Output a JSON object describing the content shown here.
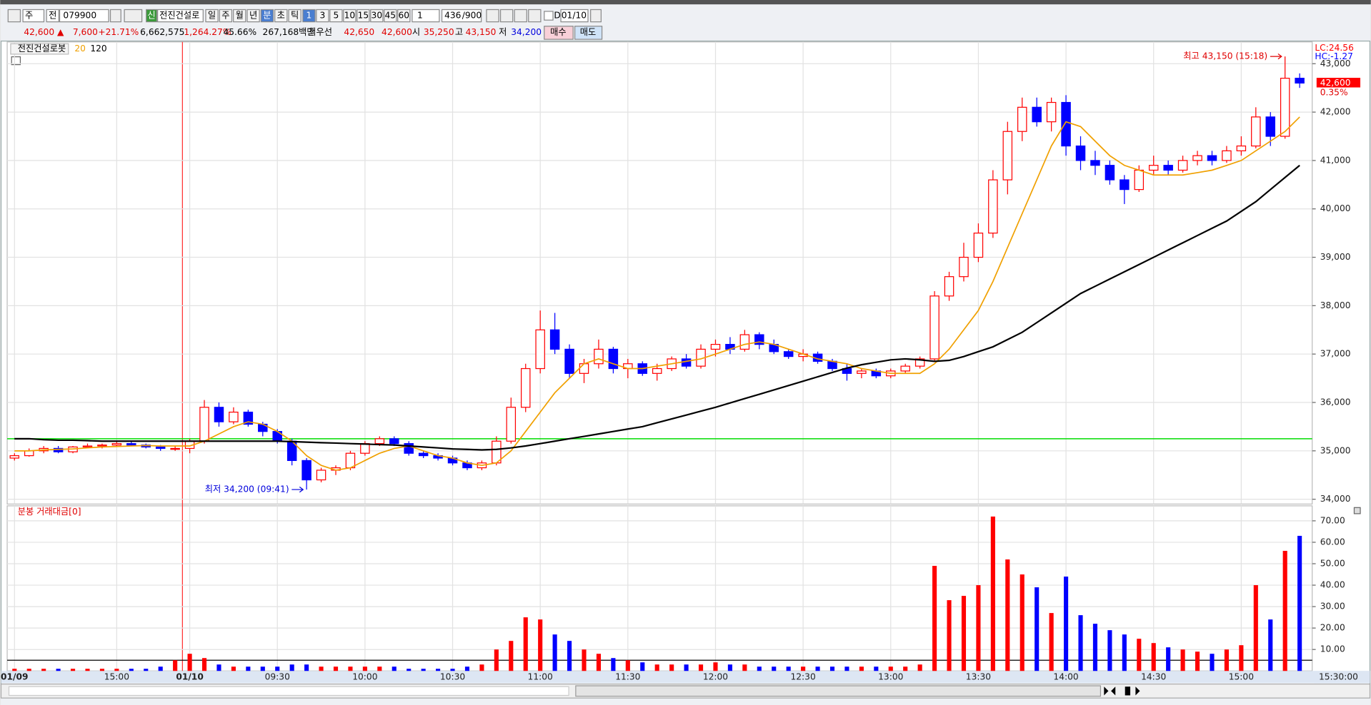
{
  "toolbar": {
    "market": "주",
    "kind": "전",
    "code": "079900",
    "credit": "신",
    "name": "전진건설로",
    "periods": [
      "일",
      "주",
      "월",
      "년",
      "분",
      "초",
      "틱"
    ],
    "intervals": [
      "1",
      "3",
      "5",
      "10",
      "15",
      "30",
      "45",
      "60"
    ],
    "count": "1",
    "bars": "436",
    "max_bars": "/900",
    "date_mode": "D",
    "date": "01/10"
  },
  "quote": {
    "price": "42,600 ▲",
    "change": "7,600",
    "change_pct": "+21.71%",
    "volume": "6,662,575",
    "volume_ratio": "1,264.27%",
    "turnover": "45.66%",
    "amount": "267,168백만",
    "best_label": "최우선",
    "best_ask": "42,650",
    "best_bid": "42,600",
    "open_label": "시",
    "open": "35,250",
    "high_label": "고",
    "high": "43,150",
    "low_label": "저",
    "low": "34,200",
    "buy": "매수",
    "sell": "매도"
  },
  "chart_data": [
    {
      "type": "candlestick",
      "title": "전진건설로봇",
      "up_color": "#ff0000",
      "down_color": "#0000ff",
      "open": [
        34850,
        34900,
        35000,
        35050,
        34980,
        35080,
        35100,
        35120,
        35150,
        35120,
        35080,
        35050,
        35050,
        35200,
        35900,
        35600,
        35800,
        35550,
        35400,
        35200,
        34800,
        34400,
        34600,
        34650,
        34950,
        35150,
        35250,
        35150,
        34950,
        34900,
        34850,
        34750,
        34650,
        34750,
        35200,
        35900,
        36700,
        37500,
        37100,
        36600,
        36800,
        37100,
        36700,
        36800,
        36600,
        36700,
        36900,
        36750,
        37100,
        37200,
        37100,
        37400,
        37200,
        37050,
        36950,
        37000,
        36850,
        36700,
        36600,
        36650,
        36550,
        36650,
        36750,
        36900,
        38200,
        38600,
        39000,
        39500,
        40600,
        41600,
        42100,
        41800,
        42200,
        41300,
        41000,
        40900,
        40600,
        40400,
        40800,
        40900,
        40800,
        41000,
        41100,
        41000,
        41200,
        41300,
        41900,
        41500,
        42700
      ],
      "high": [
        34950,
        35050,
        35100,
        35100,
        35100,
        35150,
        35150,
        35200,
        35200,
        35150,
        35120,
        35100,
        35250,
        36050,
        36000,
        35900,
        35850,
        35600,
        35450,
        35250,
        34850,
        34650,
        34700,
        35000,
        35200,
        35300,
        35300,
        35200,
        35000,
        34950,
        34900,
        34800,
        34800,
        35300,
        36100,
        36800,
        37900,
        37850,
        37200,
        36900,
        37300,
        37150,
        36900,
        36850,
        36800,
        36950,
        37000,
        37200,
        37300,
        37350,
        37500,
        37450,
        37300,
        37100,
        37100,
        37050,
        36900,
        36800,
        36700,
        36700,
        36700,
        36800,
        36950,
        38300,
        38700,
        39300,
        39700,
        40800,
        41800,
        42300,
        42300,
        42300,
        42350,
        41500,
        41200,
        41000,
        40700,
        40900,
        41100,
        41000,
        41100,
        41200,
        41200,
        41300,
        41500,
        42100,
        42000,
        43150,
        42800
      ],
      "low": [
        34800,
        34880,
        34950,
        34950,
        34950,
        35050,
        35050,
        35080,
        35100,
        35050,
        35000,
        35000,
        34950,
        35150,
        35500,
        35550,
        35500,
        35300,
        35150,
        34700,
        34200,
        34350,
        34500,
        34600,
        34900,
        35100,
        35100,
        34900,
        34850,
        34800,
        34700,
        34600,
        34600,
        34700,
        35150,
        35800,
        36600,
        37000,
        36500,
        36400,
        36700,
        36600,
        36500,
        36550,
        36450,
        36650,
        36700,
        36700,
        36950,
        37000,
        37050,
        37100,
        37000,
        36900,
        36850,
        36800,
        36650,
        36450,
        36500,
        36500,
        36500,
        36600,
        36700,
        36850,
        38100,
        38500,
        38900,
        39400,
        40300,
        41400,
        41700,
        41600,
        41100,
        40800,
        40700,
        40500,
        40100,
        40350,
        40700,
        40700,
        40750,
        40900,
        40900,
        40950,
        41100,
        41250,
        41300,
        41450,
        42500
      ],
      "close": [
        34900,
        35000,
        35050,
        34980,
        35080,
        35100,
        35120,
        35150,
        35120,
        35080,
        35050,
        35050,
        35200,
        35900,
        35600,
        35800,
        35550,
        35400,
        35200,
        34800,
        34400,
        34600,
        34650,
        34950,
        35150,
        35250,
        35150,
        34950,
        34900,
        34850,
        34750,
        34650,
        34750,
        35200,
        35900,
        36700,
        37500,
        37100,
        36600,
        36800,
        37100,
        36700,
        36800,
        36600,
        36700,
        36900,
        36750,
        37100,
        37200,
        37100,
        37400,
        37200,
        37050,
        36950,
        37000,
        36850,
        36700,
        36600,
        36650,
        36550,
        36650,
        36750,
        36900,
        38200,
        38600,
        39000,
        39500,
        40600,
        41600,
        42100,
        41800,
        42200,
        41300,
        41000,
        40900,
        40600,
        40400,
        40800,
        40900,
        40800,
        41000,
        41100,
        41000,
        41200,
        41300,
        41900,
        41500,
        42700,
        42600
      ],
      "series": [
        {
          "name": "20",
          "color": "#f0a000",
          "values": [
            35000,
            35000,
            35020,
            35030,
            35040,
            35060,
            35080,
            35090,
            35100,
            35110,
            35100,
            35100,
            35100,
            35200,
            35350,
            35500,
            35600,
            35550,
            35400,
            35200,
            34900,
            34700,
            34600,
            34650,
            34800,
            34950,
            35050,
            35100,
            35000,
            34900,
            34850,
            34750,
            34700,
            34750,
            35000,
            35400,
            35800,
            36200,
            36500,
            36800,
            36900,
            36800,
            36700,
            36700,
            36750,
            36800,
            36850,
            36900,
            37000,
            37100,
            37200,
            37250,
            37200,
            37100,
            37000,
            36900,
            36850,
            36800,
            36700,
            36650,
            36600,
            36600,
            36600,
            36800,
            37100,
            37500,
            37900,
            38500,
            39200,
            39900,
            40600,
            41300,
            41800,
            41700,
            41400,
            41100,
            40900,
            40800,
            40700,
            40700,
            40700,
            40750,
            40800,
            40900,
            41000,
            41200,
            41400,
            41600,
            41900
          ]
        },
        {
          "name": "120",
          "color": "#000000",
          "values": [
            35250,
            35250,
            35230,
            35220,
            35220,
            35210,
            35200,
            35200,
            35200,
            35200,
            35200,
            35200,
            35200,
            35200,
            35200,
            35200,
            35200,
            35200,
            35200,
            35190,
            35180,
            35170,
            35160,
            35150,
            35140,
            35130,
            35120,
            35100,
            35080,
            35060,
            35040,
            35030,
            35020,
            35030,
            35060,
            35100,
            35150,
            35200,
            35250,
            35300,
            35350,
            35400,
            35450,
            35500,
            35580,
            35660,
            35740,
            35820,
            35900,
            35990,
            36080,
            36170,
            36260,
            36350,
            36440,
            36530,
            36620,
            36710,
            36780,
            36830,
            36880,
            36900,
            36880,
            36850,
            36870,
            36950,
            37050,
            37150,
            37300,
            37450,
            37650,
            37850,
            38050,
            38250,
            38400,
            38550,
            38700,
            38850,
            39000,
            39150,
            39300,
            39450,
            39600,
            39750,
            39950,
            40150,
            40400,
            40650,
            40900
          ]
        }
      ],
      "ylim": [
        33900,
        43450
      ],
      "yticks": [
        {
          "value": 34000,
          "label": "34,000"
        },
        {
          "value": 35000,
          "label": "35,000"
        },
        {
          "value": 36000,
          "label": "36,000"
        },
        {
          "value": 37000,
          "label": "37,000"
        },
        {
          "value": 38000,
          "label": "38,000"
        },
        {
          "value": 39000,
          "label": "39,000"
        },
        {
          "value": 40000,
          "label": "40,000"
        },
        {
          "value": 41000,
          "label": "41,000"
        },
        {
          "value": 42000,
          "label": "42,000"
        },
        {
          "value": 43000,
          "label": "43,000"
        }
      ],
      "grid": true,
      "hline": {
        "value": 35250,
        "color": "#00dd00"
      },
      "high_label": "최고 43,150 (15:18)",
      "low_label": "최저 34,200 (09:41)",
      "corner_labels": [
        {
          "text": "LC:24.56",
          "color": "#ff0000"
        },
        {
          "text": "HC:-1.27",
          "color": "#0000ff"
        }
      ],
      "last_label": "42,600",
      "last_change": "0.35%"
    },
    {
      "type": "bar",
      "title": "분봉 거래대금[0]",
      "categories": [
        "01/09",
        null,
        null,
        null,
        null,
        null,
        null,
        "15:00",
        null,
        null,
        null,
        null,
        "01/10",
        null,
        null,
        null,
        null,
        null,
        "09:30",
        null,
        null,
        null,
        null,
        null,
        "10:00",
        null,
        null,
        null,
        null,
        null,
        "10:30",
        null,
        null,
        null,
        null,
        null,
        "11:00",
        null,
        null,
        null,
        null,
        null,
        "11:30",
        null,
        null,
        null,
        null,
        null,
        "12:00",
        null,
        null,
        null,
        null,
        null,
        "12:30",
        null,
        null,
        null,
        null,
        null,
        "13:00",
        null,
        null,
        null,
        null,
        null,
        "13:30",
        null,
        null,
        null,
        null,
        null,
        "14:00",
        null,
        null,
        null,
        null,
        null,
        "14:30",
        null,
        null,
        null,
        null,
        null,
        "15:00",
        null,
        null,
        null,
        null
      ],
      "values": [
        1,
        1,
        1,
        1,
        1,
        1,
        1,
        1,
        1,
        1,
        2,
        5,
        8,
        6,
        3,
        2,
        2,
        2,
        2,
        3,
        3,
        2,
        2,
        2,
        2,
        2,
        2,
        1,
        1,
        1,
        1,
        2,
        3,
        10,
        14,
        25,
        24,
        17,
        14,
        10,
        8,
        6,
        5,
        4,
        3,
        3,
        3,
        3,
        4,
        3,
        3,
        2,
        2,
        2,
        2,
        2,
        2,
        2,
        2,
        2,
        2,
        2,
        3,
        49,
        33,
        35,
        40,
        72,
        52,
        45,
        39,
        27,
        44,
        26,
        22,
        19,
        17,
        15,
        13,
        11,
        10,
        9,
        8,
        10,
        12,
        40,
        24,
        56,
        63
      ],
      "ylim": [
        0,
        77
      ],
      "yticks": [
        {
          "value": 10,
          "label": "10.00"
        },
        {
          "value": 20,
          "label": "20.00"
        },
        {
          "value": 30,
          "label": "30.00"
        },
        {
          "value": 40,
          "label": "40.00"
        },
        {
          "value": 50,
          "label": "50.00"
        },
        {
          "value": 60,
          "label": "60.00"
        },
        {
          "value": 70,
          "label": "70.00"
        }
      ],
      "hline": {
        "value": 5,
        "color": "#000000"
      },
      "x_cursor_label": "15:30:00"
    }
  ]
}
